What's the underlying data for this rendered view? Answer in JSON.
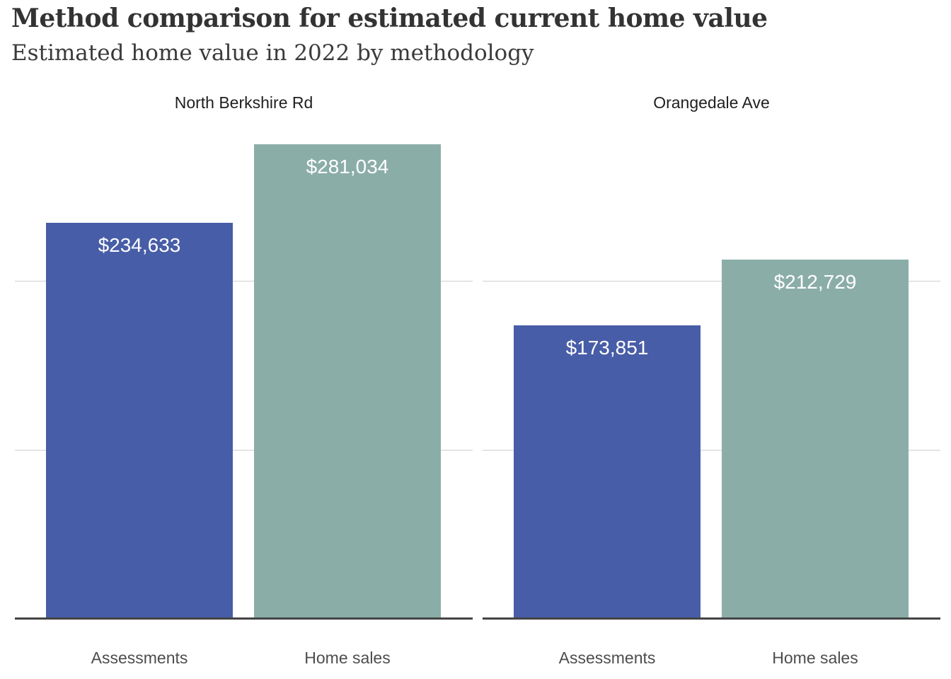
{
  "header": {
    "title": "Method comparison for estimated current home value",
    "subtitle": "Estimated home value in 2022 by methodology"
  },
  "chart_data": {
    "type": "bar",
    "title": "Method comparison for estimated current home value",
    "subtitle": "Estimated home value in 2022 by methodology",
    "categories": [
      "Assessments",
      "Home sales"
    ],
    "panels": [
      {
        "title": "North Berkshire Rd",
        "bars": [
          {
            "category": "Assessments",
            "value": 234633,
            "label": "$234,633"
          },
          {
            "category": "Home sales",
            "value": 281034,
            "label": "$281,034"
          }
        ]
      },
      {
        "title": "Orangedale Ave",
        "bars": [
          {
            "category": "Assessments",
            "value": 173851,
            "label": "$173,851"
          },
          {
            "category": "Home sales",
            "value": 212729,
            "label": "$212,729"
          }
        ]
      }
    ],
    "ylim": [
      0,
      300000
    ],
    "gridline_values": [
      100000,
      200000
    ],
    "grid": "horizontal",
    "legend": "none",
    "value_labels": "inside-top"
  },
  "colors": {
    "assessments_bar": "#485da7",
    "home_sales_bar": "#8bada8",
    "value_label_text": "#ffffff",
    "axis_line": "#444444",
    "gridline": "#cfcfcf",
    "title_text": "#333333",
    "subtitle_text": "#3a3a3a",
    "panel_title_text": "#1f1f1f",
    "category_label_text": "#4d4d4d",
    "background": "#ffffff"
  }
}
